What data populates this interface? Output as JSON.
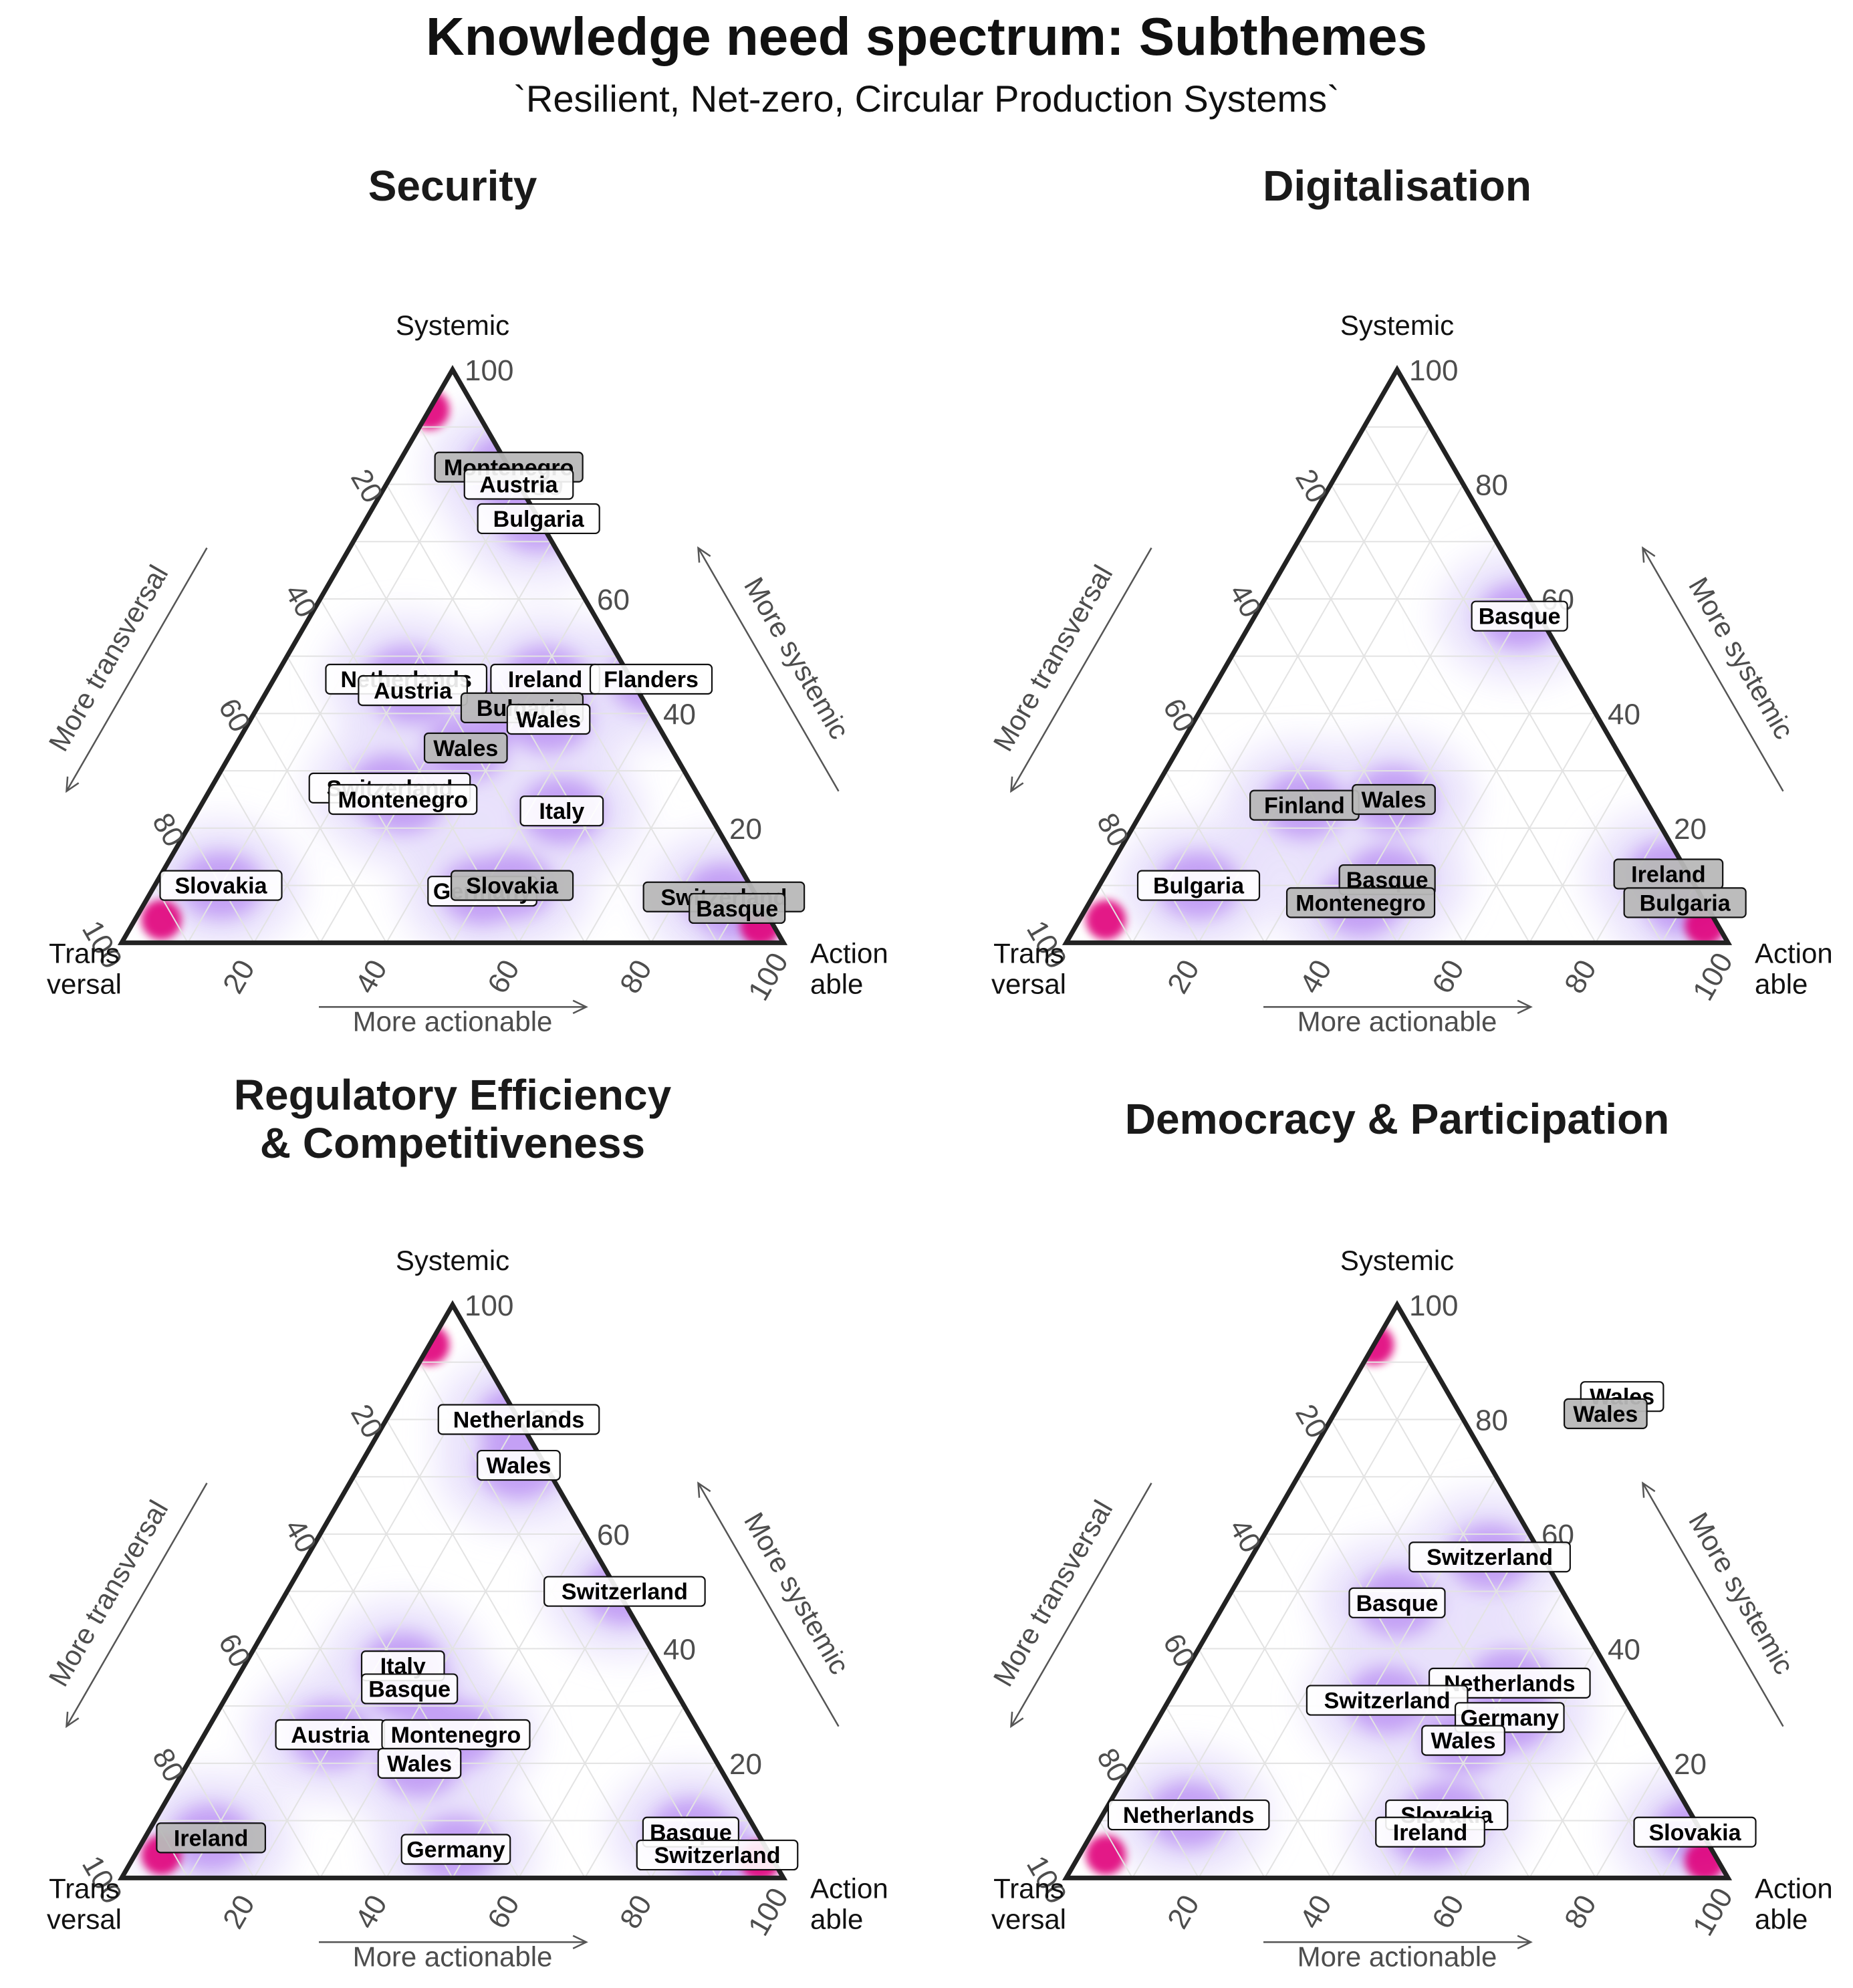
{
  "title": "Knowledge need spectrum: Subthemes",
  "subtitle": "`Resilient, Net-zero, Circular Production Systems`",
  "colors": {
    "density_low": "#e4dcfb",
    "density_mid": "#a66cf0",
    "density_high": "#e0007a",
    "label_light": "#ffffff",
    "label_dark": "#b8b8b8",
    "frame": "#222222",
    "grid": "#e3e3e3"
  },
  "chart_data": [
    {
      "type": "scatter",
      "subtype": "ternary",
      "title": "Security",
      "vertex_labels": {
        "top": "Systemic",
        "left": "Trans\nversal",
        "right": "Action\nable"
      },
      "arrow_labels": {
        "bottom": "More actionable",
        "left": "More transversal",
        "right": "More systemic"
      },
      "ticks": [
        "20",
        "40",
        "60",
        "80",
        "100"
      ],
      "points": [
        {
          "label": "Montenegro",
          "systemic": 83,
          "actionable": 17,
          "shade": "dark"
        },
        {
          "label": "Austria",
          "systemic": 80,
          "actionable": 20,
          "shade": "light"
        },
        {
          "label": "Bulgaria",
          "systemic": 74,
          "actionable": 26,
          "shade": "light"
        },
        {
          "label": "Netherlands",
          "systemic": 46,
          "actionable": 20,
          "shade": "light"
        },
        {
          "label": "Austria",
          "systemic": 44,
          "actionable": 22,
          "shade": "light"
        },
        {
          "label": "Ireland",
          "systemic": 46,
          "actionable": 41,
          "shade": "light"
        },
        {
          "label": "Flanders",
          "systemic": 46,
          "actionable": 57,
          "shade": "light"
        },
        {
          "label": "Bulgaria",
          "systemic": 41,
          "actionable": 40,
          "shade": "dark"
        },
        {
          "label": "Wales",
          "systemic": 39,
          "actionable": 45,
          "shade": "light"
        },
        {
          "label": "Wales",
          "systemic": 34,
          "actionable": 35,
          "shade": "dark"
        },
        {
          "label": "Switzerland",
          "systemic": 27,
          "actionable": 27,
          "shade": "light"
        },
        {
          "label": "Montenegro",
          "systemic": 25,
          "actionable": 30,
          "shade": "light"
        },
        {
          "label": "Italy",
          "systemic": 23,
          "actionable": 55,
          "shade": "light"
        },
        {
          "label": "Slovakia",
          "systemic": 10,
          "actionable": 10,
          "shade": "light"
        },
        {
          "label": "Germany",
          "systemic": 9,
          "actionable": 50,
          "shade": "light"
        },
        {
          "label": "Slovakia",
          "systemic": 10,
          "actionable": 54,
          "shade": "dark"
        },
        {
          "label": "Switzerland",
          "systemic": 8,
          "actionable": 87,
          "shade": "dark"
        },
        {
          "label": "Basque",
          "systemic": 6,
          "actionable": 90,
          "shade": "dark"
        }
      ]
    },
    {
      "type": "scatter",
      "subtype": "ternary",
      "title": "Digitalisation",
      "vertex_labels": {
        "top": "Systemic",
        "left": "Trans\nversal",
        "right": "Action\nable"
      },
      "arrow_labels": {
        "bottom": "More actionable",
        "left": "More transversal",
        "right": "More systemic"
      },
      "ticks": [
        "20",
        "40",
        "60",
        "80",
        "100"
      ],
      "points": [
        {
          "label": "Basque",
          "systemic": 57,
          "actionable": 40,
          "shade": "light"
        },
        {
          "label": "Finland",
          "systemic": 24,
          "actionable": 24,
          "shade": "dark"
        },
        {
          "label": "Wales",
          "systemic": 25,
          "actionable": 37,
          "shade": "dark"
        },
        {
          "label": "Bulgaria",
          "systemic": 10,
          "actionable": 15,
          "shade": "light"
        },
        {
          "label": "Basque",
          "systemic": 11,
          "actionable": 43,
          "shade": "dark"
        },
        {
          "label": "Montenegro",
          "systemic": 7,
          "actionable": 41,
          "shade": "dark"
        },
        {
          "label": "Ireland",
          "systemic": 12,
          "actionable": 85,
          "shade": "dark"
        },
        {
          "label": "Bulgaria",
          "systemic": 7,
          "actionable": 90,
          "shade": "dark"
        }
      ]
    },
    {
      "type": "scatter",
      "subtype": "ternary",
      "title": "Regulatory Efficiency\n  & Competitiveness",
      "vertex_labels": {
        "top": "Systemic",
        "left": "Trans\nversal",
        "right": "Action\nable"
      },
      "arrow_labels": {
        "bottom": "More actionable",
        "left": "More transversal",
        "right": "More systemic"
      },
      "ticks": [
        "20",
        "40",
        "60",
        "80",
        "100"
      ],
      "points": [
        {
          "label": "Netherlands",
          "systemic": 80,
          "actionable": 20,
          "shade": "light"
        },
        {
          "label": "Wales",
          "systemic": 72,
          "actionable": 24,
          "shade": "light"
        },
        {
          "label": "Switzerland",
          "systemic": 50,
          "actionable": 51,
          "shade": "light"
        },
        {
          "label": "Italy",
          "systemic": 37,
          "actionable": 24,
          "shade": "light"
        },
        {
          "label": "Basque",
          "systemic": 33,
          "actionable": 27,
          "shade": "light"
        },
        {
          "label": "Austria",
          "systemic": 25,
          "actionable": 19,
          "shade": "light"
        },
        {
          "label": "Montenegro",
          "systemic": 25,
          "actionable": 38,
          "shade": "light"
        },
        {
          "label": "Wales",
          "systemic": 20,
          "actionable": 35,
          "shade": "light"
        },
        {
          "label": "Ireland",
          "systemic": 7,
          "actionable": 10,
          "shade": "dark"
        },
        {
          "label": "Germany",
          "systemic": 5,
          "actionable": 48,
          "shade": "light"
        },
        {
          "label": "Basque",
          "systemic": 8,
          "actionable": 82,
          "shade": "light"
        },
        {
          "label": "Switzerland",
          "systemic": 4,
          "actionable": 88,
          "shade": "light"
        }
      ]
    },
    {
      "type": "scatter",
      "subtype": "ternary",
      "title": "Democracy & Participation",
      "vertex_labels": {
        "top": "Systemic",
        "left": "Trans\nversal",
        "right": "Action\nable"
      },
      "arrow_labels": {
        "bottom": "More actionable",
        "left": "More transversal",
        "right": "More systemic"
      },
      "ticks": [
        "20",
        "40",
        "60",
        "80",
        "100"
      ],
      "points": [
        {
          "label": "Wales",
          "systemic": 84,
          "actionable": 42,
          "shade": "light"
        },
        {
          "label": "Wales",
          "systemic": 81,
          "actionable": 41,
          "shade": "dark"
        },
        {
          "label": "Switzerland",
          "systemic": 56,
          "actionable": 36,
          "shade": "light"
        },
        {
          "label": "Basque",
          "systemic": 48,
          "actionable": 26,
          "shade": "light"
        },
        {
          "label": "Netherlands",
          "systemic": 34,
          "actionable": 50,
          "shade": "light"
        },
        {
          "label": "Switzerland",
          "systemic": 31,
          "actionable": 33,
          "shade": "light"
        },
        {
          "label": "Germany",
          "systemic": 28,
          "actionable": 53,
          "shade": "light"
        },
        {
          "label": "Wales",
          "systemic": 24,
          "actionable": 48,
          "shade": "light"
        },
        {
          "label": "Netherlands",
          "systemic": 11,
          "actionable": 13,
          "shade": "light"
        },
        {
          "label": "Slovakia",
          "systemic": 11,
          "actionable": 52,
          "shade": "light"
        },
        {
          "label": "Ireland",
          "systemic": 8,
          "actionable": 51,
          "shade": "light"
        },
        {
          "label": "Slovakia",
          "systemic": 8,
          "actionable": 91,
          "shade": "light"
        }
      ]
    }
  ]
}
